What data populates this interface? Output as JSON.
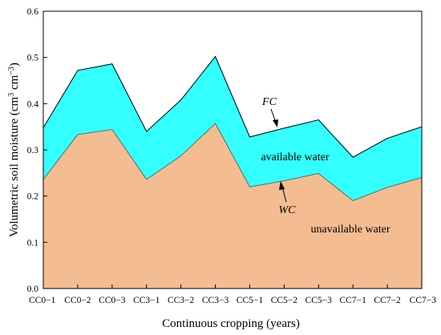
{
  "chart_data": {
    "type": "area",
    "categories": [
      "CC0−1",
      "CC0−2",
      "CC0−3",
      "CC3−1",
      "CC3−2",
      "CC3−3",
      "CC5−1",
      "CC5−2",
      "CC5−3",
      "CC7−1",
      "CC7−2",
      "CC7−3"
    ],
    "series": [
      {
        "name": "FC",
        "values": [
          0.348,
          0.472,
          0.486,
          0.34,
          0.408,
          0.502,
          0.328,
          0.347,
          0.365,
          0.284,
          0.325,
          0.35
        ]
      },
      {
        "name": "WC",
        "values": [
          0.236,
          0.333,
          0.344,
          0.236,
          0.287,
          0.357,
          0.22,
          0.233,
          0.249,
          0.19,
          0.219,
          0.24
        ]
      }
    ],
    "region_labels": {
      "upper": "available water",
      "lower": "unavailable water"
    },
    "yticks": [
      "0.0",
      "0.1",
      "0.2",
      "0.3",
      "0.4",
      "0.5",
      "0.6"
    ],
    "ylim": [
      0,
      0.6
    ],
    "xlabel": "Continuous cropping (years)",
    "ylabel": {
      "base": "Volumetric soil moisture (cm",
      "sup1": "3",
      "mid": " cm",
      "sup2": "−3",
      "end": ")"
    },
    "grid": false,
    "colors": {
      "available": "#33ffff",
      "unavailable": "#f4bc91",
      "line": "#000000"
    }
  }
}
